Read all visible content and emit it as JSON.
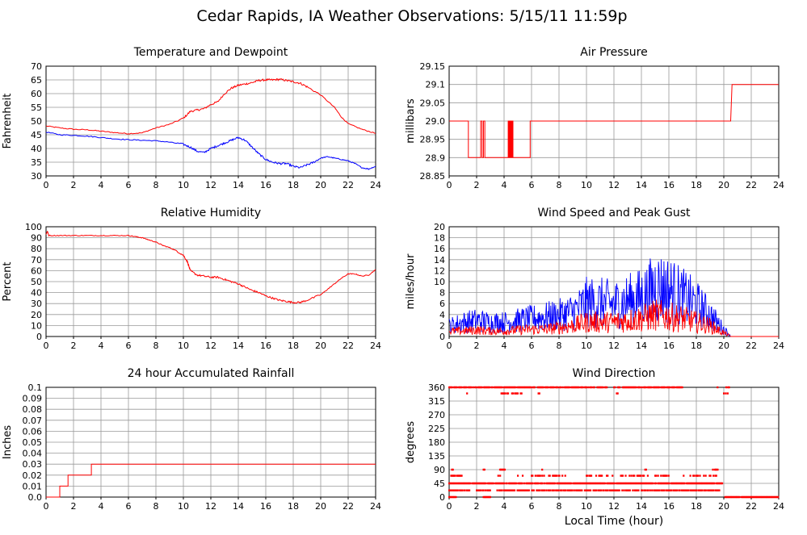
{
  "page": {
    "title": "Cedar Rapids, IA Weather Observations: 5/15/11 11:59p",
    "xlabel": "Local Time (hour)"
  },
  "colors": {
    "red": "#ff0000",
    "blue": "#0000ff",
    "grid": "#999999",
    "axis": "#000000"
  },
  "chart_data": [
    {
      "id": "temp",
      "type": "line",
      "title": "Temperature and Dewpoint",
      "ylabel": "Fahrenheit",
      "xlim": [
        0,
        24
      ],
      "xticks": [
        0,
        2,
        4,
        6,
        8,
        10,
        12,
        14,
        16,
        18,
        20,
        22,
        24
      ],
      "ylim": [
        30,
        70
      ],
      "yticks": [
        "30",
        "35",
        "40",
        "45",
        "50",
        "55",
        "60",
        "65",
        "70"
      ],
      "grid": true,
      "series": [
        {
          "color": "#ff0000",
          "x": [
            0,
            1,
            2,
            3,
            4,
            5,
            6,
            7,
            8,
            9,
            10,
            10.5,
            11,
            11.5,
            12,
            12.5,
            13,
            13.5,
            14,
            14.5,
            15,
            15.5,
            16,
            16.5,
            17,
            17.5,
            18,
            18.5,
            19,
            20,
            21,
            21.5,
            22,
            23,
            24
          ],
          "y": [
            48.2,
            47.5,
            47,
            46.8,
            46.3,
            45.8,
            45.4,
            45.7,
            47.5,
            48.8,
            51,
            53.5,
            54,
            54.5,
            56,
            57,
            60,
            62,
            63,
            63.5,
            64,
            64.8,
            65,
            65,
            65.2,
            64.8,
            64.3,
            63.8,
            62.5,
            59.5,
            55,
            51.5,
            49,
            47,
            45.5
          ]
        },
        {
          "color": "#0000ff",
          "x": [
            0,
            1,
            2,
            3,
            4,
            5,
            6,
            7,
            8,
            9,
            10,
            10.5,
            11,
            11.5,
            12,
            12.5,
            13,
            13.5,
            14,
            14.5,
            15,
            15.5,
            16,
            16.5,
            17,
            17.5,
            18,
            18.5,
            19,
            19.5,
            20,
            20.5,
            21,
            21.5,
            22,
            22.5,
            23,
            23.5,
            24
          ],
          "y": [
            46,
            45,
            44.8,
            44.5,
            44,
            43.5,
            43.2,
            43,
            42.8,
            42.3,
            41.5,
            40.5,
            39,
            38.5,
            40,
            41,
            42,
            43,
            44,
            43,
            40.5,
            38,
            36,
            35,
            34.5,
            34.5,
            33.5,
            33,
            34,
            35,
            36.5,
            37,
            36.5,
            36,
            35.5,
            34.5,
            33,
            32.5,
            33.5
          ]
        }
      ]
    },
    {
      "id": "pressure",
      "type": "line",
      "title": "Air Pressure",
      "ylabel": "millibars",
      "xlim": [
        0,
        24
      ],
      "xticks": [
        0,
        2,
        4,
        6,
        8,
        10,
        12,
        14,
        16,
        18,
        20,
        22,
        24
      ],
      "ylim": [
        28.85,
        29.15
      ],
      "yticks": [
        "28.85",
        "28.9",
        "28.95",
        "29.0",
        "29.05",
        "29.1",
        "29.15"
      ],
      "grid": true,
      "series": [
        {
          "color": "#ff0000",
          "x": [
            0,
            1.4,
            1.4,
            2.3,
            2.3,
            2.4,
            2.4,
            2.5,
            2.5,
            2.6,
            2.6,
            4.3,
            4.3,
            4.35,
            4.35,
            4.4,
            4.4,
            4.45,
            4.45,
            4.5,
            4.5,
            4.55,
            4.55,
            4.6,
            4.6,
            4.65,
            4.65,
            4.7,
            4.7,
            5.9,
            5.9,
            20.5,
            20.6,
            24
          ],
          "y": [
            29.0,
            29.0,
            28.9,
            28.9,
            29.0,
            29.0,
            28.9,
            28.9,
            29.0,
            29.0,
            28.9,
            28.9,
            29.0,
            29.0,
            28.9,
            28.9,
            29.0,
            29.0,
            28.9,
            28.9,
            29.0,
            29.0,
            28.9,
            28.9,
            29.0,
            29.0,
            28.9,
            28.9,
            28.9,
            28.9,
            29.0,
            29.0,
            29.1,
            29.1
          ]
        }
      ]
    },
    {
      "id": "humidity",
      "type": "line",
      "title": "Relative Humidity",
      "ylabel": "Percent",
      "xlim": [
        0,
        24
      ],
      "xticks": [
        0,
        2,
        4,
        6,
        8,
        10,
        12,
        14,
        16,
        18,
        20,
        22,
        24
      ],
      "ylim": [
        0,
        100
      ],
      "yticks": [
        "0",
        "10",
        "20",
        "30",
        "40",
        "50",
        "60",
        "70",
        "80",
        "90",
        "100"
      ],
      "grid": true,
      "series": [
        {
          "color": "#ff0000",
          "x": [
            0,
            0.1,
            0.2,
            1,
            2,
            3,
            4,
            5,
            6,
            6.5,
            7,
            7.5,
            8,
            8.5,
            9,
            9.5,
            10,
            10.3,
            10.5,
            11,
            11.5,
            12,
            12.5,
            13,
            13.5,
            14,
            14.5,
            15,
            15.5,
            16,
            16.5,
            17,
            17.5,
            18,
            18.5,
            19,
            20,
            20.5,
            21,
            21.5,
            22,
            22.5,
            23,
            23.5,
            24
          ],
          "y": [
            93,
            96,
            92,
            92,
            92,
            92,
            92,
            92,
            92,
            91,
            90,
            88,
            86,
            83,
            81,
            78,
            74,
            68,
            60,
            56,
            55,
            54,
            54,
            52,
            50,
            48,
            45,
            42,
            40,
            37,
            35,
            33,
            32,
            31,
            31,
            33,
            38,
            43,
            48,
            53,
            57,
            57,
            55,
            56,
            61
          ]
        }
      ]
    },
    {
      "id": "wind",
      "type": "line",
      "title": "Wind Speed and Peak Gust",
      "ylabel": "miles/hour",
      "xlim": [
        0,
        24
      ],
      "xticks": [
        0,
        2,
        4,
        6,
        8,
        10,
        12,
        14,
        16,
        18,
        20,
        22,
        24
      ],
      "ylim": [
        0,
        20
      ],
      "yticks": [
        "0",
        "2",
        "4",
        "6",
        "8",
        "10",
        "12",
        "14",
        "16",
        "18",
        "20"
      ],
      "grid": true,
      "series": [
        {
          "color": "#0000ff",
          "x": [
            0,
            1,
            2,
            3,
            4,
            5,
            6,
            7,
            8,
            9,
            9.5,
            10,
            11,
            12,
            13,
            14,
            14.5,
            15,
            16,
            17,
            18,
            19,
            19.5,
            20,
            20.3,
            20.5,
            24
          ],
          "y": [
            3,
            4,
            4.5,
            4,
            4,
            4.5,
            5,
            5.5,
            6,
            7,
            8,
            9.5,
            9.5,
            9,
            10,
            11,
            12,
            14,
            13,
            11,
            9,
            6,
            4,
            2,
            1,
            0,
            0
          ]
        },
        {
          "color": "#ff0000",
          "x": [
            0,
            1,
            2,
            3,
            4,
            5,
            6,
            7,
            8,
            9,
            9.5,
            10,
            11,
            12,
            13,
            14,
            14.5,
            15,
            16,
            17,
            18,
            19,
            19.5,
            20,
            20.3,
            20.5,
            24
          ],
          "y": [
            1.5,
            1.5,
            1.8,
            1.5,
            1.5,
            1.8,
            2,
            2,
            2.5,
            3,
            3.5,
            4,
            4,
            4,
            4.5,
            5,
            5.5,
            6,
            5.5,
            5,
            4,
            3,
            2,
            1,
            0.5,
            0,
            0
          ]
        }
      ]
    },
    {
      "id": "rain",
      "type": "line",
      "title": "24 hour Accumulated Rainfall",
      "ylabel": "Inches",
      "xlim": [
        0,
        24
      ],
      "xticks": [
        0,
        2,
        4,
        6,
        8,
        10,
        12,
        14,
        16,
        18,
        20,
        22,
        24
      ],
      "ylim": [
        0,
        0.1
      ],
      "yticks": [
        "0.0",
        "0.01",
        "0.02",
        "0.03",
        "0.04",
        "0.05",
        "0.06",
        "0.07",
        "0.08",
        "0.09",
        "0.1"
      ],
      "grid": true,
      "series": [
        {
          "color": "#ff0000",
          "x": [
            0,
            1,
            1,
            1.6,
            1.6,
            3.3,
            3.3,
            24
          ],
          "y": [
            0,
            0,
            0.01,
            0.01,
            0.02,
            0.02,
            0.03,
            0.03
          ]
        }
      ]
    },
    {
      "id": "direction",
      "type": "scatter",
      "title": "Wind Direction",
      "ylabel": "degrees",
      "xlim": [
        0,
        24
      ],
      "xticks": [
        0,
        2,
        4,
        6,
        8,
        10,
        12,
        14,
        16,
        18,
        20,
        22,
        24
      ],
      "ylim": [
        0,
        360
      ],
      "yticks": [
        "0",
        "45",
        "90",
        "135",
        "180",
        "225",
        "270",
        "315",
        "360"
      ],
      "grid": true,
      "series": [
        {
          "color": "#ff0000",
          "bands": [
            {
              "y": 360,
              "x": [
                [
                  0,
                  11.5
                ],
                [
                  12,
                  17
                ],
                [
                  19.4,
                  19.6
                ],
                [
                  20.1,
                  20.4
                ]
              ],
              "density": 0.85
            },
            {
              "y": 340,
              "x": [
                [
                  1.3,
                  1.4
                ],
                [
                  3.8,
                  5.3
                ],
                [
                  6.5,
                  6.6
                ],
                [
                  9.6,
                  9.7
                ],
                [
                  12.2,
                  12.3
                ],
                [
                  20,
                  20.3
                ]
              ],
              "density": 0.8
            },
            {
              "y": 90,
              "x": [
                [
                  0.2,
                  0.3
                ],
                [
                  2.5,
                  2.6
                ],
                [
                  3.7,
                  4.1
                ],
                [
                  6.7,
                  6.8
                ],
                [
                  14.2,
                  14.4
                ],
                [
                  19.2,
                  19.6
                ]
              ],
              "density": 0.9
            },
            {
              "y": 70,
              "x": [
                [
                  0,
                  1
                ],
                [
                  3.5,
                  4
                ],
                [
                  5,
                  5.5
                ],
                [
                  6,
                  8.5
                ],
                [
                  10,
                  12
                ],
                [
                  12.5,
                  14.5
                ],
                [
                  15,
                  16
                ],
                [
                  17,
                  19.5
                ]
              ],
              "density": 0.55
            },
            {
              "y": 45,
              "x": [
                [
                  0,
                  19.9
                ]
              ],
              "density": 0.95
            },
            {
              "y": 22,
              "x": [
                [
                  0,
                  1.5
                ],
                [
                  2,
                  3
                ],
                [
                  3.5,
                  19.8
                ]
              ],
              "density": 0.8
            },
            {
              "y": 0,
              "x": [
                [
                  0,
                  0.5
                ],
                [
                  2.5,
                  3
                ],
                [
                  20.1,
                  24
                ]
              ],
              "density": 0.95
            }
          ]
        }
      ]
    }
  ]
}
